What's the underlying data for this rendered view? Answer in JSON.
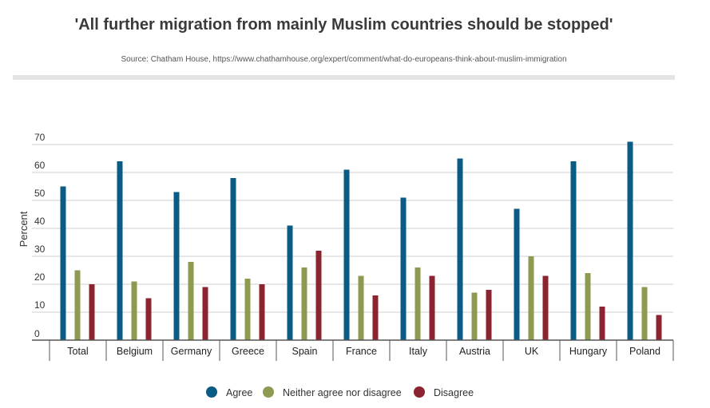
{
  "title": "'All further migration from mainly Muslim countries should be stopped'",
  "source": "Source: Chatham House, https://www.chathamhouse.org/expert/comment/what-do-europeans-think-about-muslim-immigration",
  "colors": {
    "agree": "#0b5c85",
    "neutral": "#8d9b52",
    "disagree": "#8b2430"
  },
  "chart_data": {
    "type": "bar",
    "title": "'All further migration from mainly Muslim countries should be stopped'",
    "xlabel": "",
    "ylabel": "Percent",
    "ylim": [
      0,
      70
    ],
    "yticks": [
      0,
      10,
      20,
      30,
      40,
      50,
      60,
      70
    ],
    "grid": true,
    "legend_position": "bottom",
    "categories": [
      "Total",
      "Belgium",
      "Germany",
      "Greece",
      "Spain",
      "France",
      "Italy",
      "Austria",
      "UK",
      "Hungary",
      "Poland"
    ],
    "series": [
      {
        "name": "Agree",
        "color": "#0b5c85",
        "values": [
          55,
          64,
          53,
          58,
          41,
          61,
          51,
          65,
          47,
          64,
          71
        ]
      },
      {
        "name": "Neither agree nor disagree",
        "color": "#8d9b52",
        "values": [
          25,
          21,
          28,
          22,
          26,
          23,
          26,
          17,
          30,
          24,
          19
        ]
      },
      {
        "name": "Disagree",
        "color": "#8b2430",
        "values": [
          20,
          15,
          19,
          20,
          32,
          16,
          23,
          18,
          23,
          12,
          9
        ]
      }
    ]
  }
}
